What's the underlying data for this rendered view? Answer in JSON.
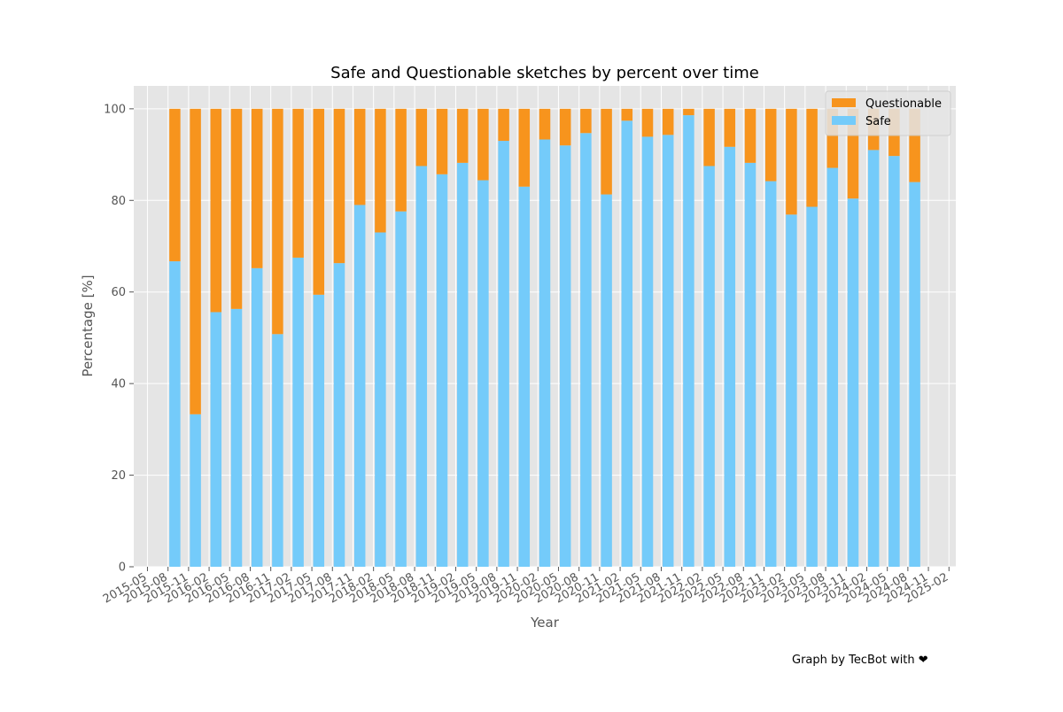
{
  "chart_data": {
    "type": "stacked-bar",
    "title": "Safe and Questionable sketches by percent over time",
    "x_label": "Year",
    "y_label": "Percentage [%]",
    "footer": "Graph by TecBot with ❤",
    "x": [
      "2015-09",
      "2015-12",
      "2016-03",
      "2016-06",
      "2016-09",
      "2016-12",
      "2017-03",
      "2017-06",
      "2017-09",
      "2017-12",
      "2018-03",
      "2018-06",
      "2018-09",
      "2018-12",
      "2019-03",
      "2019-06",
      "2019-09",
      "2019-12",
      "2020-03",
      "2020-06",
      "2020-09",
      "2020-12",
      "2021-03",
      "2021-06",
      "2021-09",
      "2021-12",
      "2022-03",
      "2022-06",
      "2022-09",
      "2022-12",
      "2023-03",
      "2023-06",
      "2023-09",
      "2023-12",
      "2024-03",
      "2024-06",
      "2024-09"
    ],
    "series": [
      {
        "name": "Safe",
        "color": "#74cbfa",
        "values": [
          66.7,
          33.3,
          55.6,
          56.3,
          65.2,
          50.8,
          67.5,
          59.4,
          66.3,
          79,
          73,
          77.6,
          87.5,
          85.7,
          88.2,
          84.4,
          93,
          83,
          93.3,
          92,
          94.7,
          81.3,
          97.4,
          93.9,
          94.3,
          98.6,
          87.5,
          91.7,
          88.2,
          84.2,
          76.9,
          78.6,
          87.1,
          80.4,
          91,
          89.7,
          84
        ]
      },
      {
        "name": "Questionable",
        "color": "#f7941d",
        "values": [
          33.3,
          66.7,
          44.4,
          43.7,
          34.8,
          49.2,
          32.5,
          40.6,
          33.7,
          21,
          27,
          22.4,
          12.5,
          14.3,
          11.8,
          15.6,
          7,
          17,
          6.7,
          8,
          5.3,
          18.7,
          2.6,
          6.1,
          5.7,
          1.4,
          12.5,
          8.3,
          11.8,
          15.8,
          23.1,
          21.4,
          12.9,
          19.6,
          9,
          10.3,
          16
        ]
      }
    ],
    "xlim": [
      "2015-03",
      "2025-03"
    ],
    "xticks": [
      "2015-05",
      "2015-08",
      "2015-11",
      "2016-02",
      "2016-05",
      "2016-08",
      "2016-11",
      "2017-02",
      "2017-05",
      "2017-08",
      "2017-11",
      "2018-02",
      "2018-05",
      "2018-08",
      "2018-11",
      "2019-02",
      "2019-05",
      "2019-08",
      "2019-11",
      "2020-02",
      "2020-05",
      "2020-08",
      "2020-11",
      "2021-02",
      "2021-05",
      "2021-08",
      "2021-11",
      "2022-02",
      "2022-05",
      "2022-08",
      "2022-11",
      "2023-02",
      "2023-05",
      "2023-08",
      "2023-11",
      "2024-02",
      "2024-05",
      "2024-08",
      "2024-11",
      "2025-02"
    ],
    "ylim": [
      0,
      105
    ],
    "yticks": [
      0,
      20,
      40,
      60,
      80,
      100
    ],
    "grid": true,
    "legend": "upper right"
  }
}
